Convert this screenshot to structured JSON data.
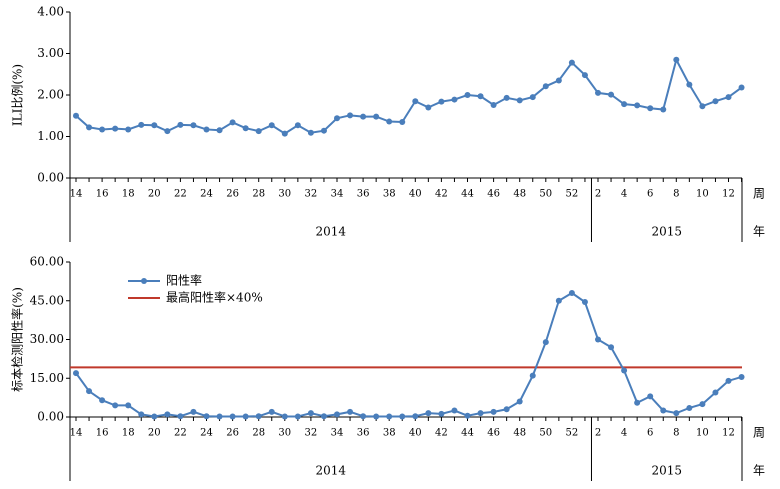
{
  "chart_data": [
    {
      "type": "line",
      "y_label": "ILI比例(%)",
      "categories": [
        "14",
        null,
        "16",
        null,
        "18",
        null,
        "20",
        null,
        "22",
        null,
        "24",
        null,
        "26",
        null,
        "28",
        null,
        "30",
        null,
        "32",
        null,
        "34",
        null,
        "36",
        null,
        "38",
        null,
        "40",
        null,
        "42",
        null,
        "44",
        null,
        "46",
        null,
        "48",
        null,
        "50",
        null,
        "52",
        null,
        "2",
        null,
        "4",
        null,
        "6",
        null,
        "8",
        null,
        "10",
        null,
        "12",
        null
      ],
      "x_unit": "周",
      "group_unit": "年",
      "groups": [
        "2014",
        "2015"
      ],
      "series": [
        {
          "name": null,
          "color": "#4a7ebb",
          "values": [
            1.5,
            1.22,
            1.17,
            1.19,
            1.17,
            1.28,
            1.27,
            1.13,
            1.28,
            1.27,
            1.17,
            1.15,
            1.34,
            1.2,
            1.13,
            1.27,
            1.07,
            1.27,
            1.09,
            1.14,
            1.44,
            1.51,
            1.48,
            1.48,
            1.36,
            1.35,
            1.85,
            1.7,
            1.84,
            1.89,
            2.0,
            1.97,
            1.76,
            1.93,
            1.87,
            1.95,
            2.21,
            2.35,
            2.78,
            2.48,
            2.05,
            2.01,
            1.78,
            1.75,
            1.68,
            1.65,
            2.85,
            2.25,
            1.73,
            1.85,
            1.95,
            2.18
          ]
        }
      ],
      "ylim": [
        0,
        4
      ],
      "yticks": [
        {
          "value": 0,
          "label": "0.00"
        },
        {
          "value": 1,
          "label": "1.00"
        },
        {
          "value": 2,
          "label": "2.00"
        },
        {
          "value": 3,
          "label": "3.00"
        },
        {
          "value": 4,
          "label": "4.00"
        }
      ]
    },
    {
      "type": "line",
      "y_label": "标本检测阳性率(%)",
      "categories": [
        "14",
        null,
        "16",
        null,
        "18",
        null,
        "20",
        null,
        "22",
        null,
        "24",
        null,
        "26",
        null,
        "28",
        null,
        "30",
        null,
        "32",
        null,
        "34",
        null,
        "36",
        null,
        "38",
        null,
        "40",
        null,
        "42",
        null,
        "44",
        null,
        "46",
        null,
        "48",
        null,
        "50",
        null,
        "52",
        null,
        "2",
        null,
        "4",
        null,
        "6",
        null,
        "8",
        null,
        "10",
        null,
        "12",
        null
      ],
      "x_unit": "周",
      "group_unit": "年",
      "groups": [
        "2014",
        "2015"
      ],
      "series": [
        {
          "name": "阳性率",
          "color": "#4a7ebb",
          "values": [
            17,
            10,
            6.5,
            4.5,
            4.5,
            1,
            0.2,
            1,
            0.3,
            2,
            0.3,
            0.2,
            0.2,
            0.2,
            0.3,
            2,
            0.2,
            0.2,
            1.5,
            0.3,
            1,
            2,
            0.3,
            0.2,
            0.2,
            0.2,
            0.3,
            1.5,
            1.2,
            2.5,
            0.5,
            1.5,
            2,
            3,
            6,
            16,
            29,
            45,
            48,
            44.5,
            30,
            27,
            18,
            5.5,
            8,
            2.5,
            1.5,
            3.5,
            5,
            9.5,
            14,
            15.5
          ]
        }
      ],
      "reference": {
        "name": "最高阳性率×40%",
        "value": 19.2,
        "color": "#c0392b"
      },
      "ylim": [
        0,
        60
      ],
      "yticks": [
        {
          "value": 0,
          "label": "0.00"
        },
        {
          "value": 15,
          "label": "15.00"
        },
        {
          "value": 30,
          "label": "30.00"
        },
        {
          "value": 45,
          "label": "45.00"
        },
        {
          "value": 60,
          "label": "60.00"
        }
      ]
    }
  ]
}
